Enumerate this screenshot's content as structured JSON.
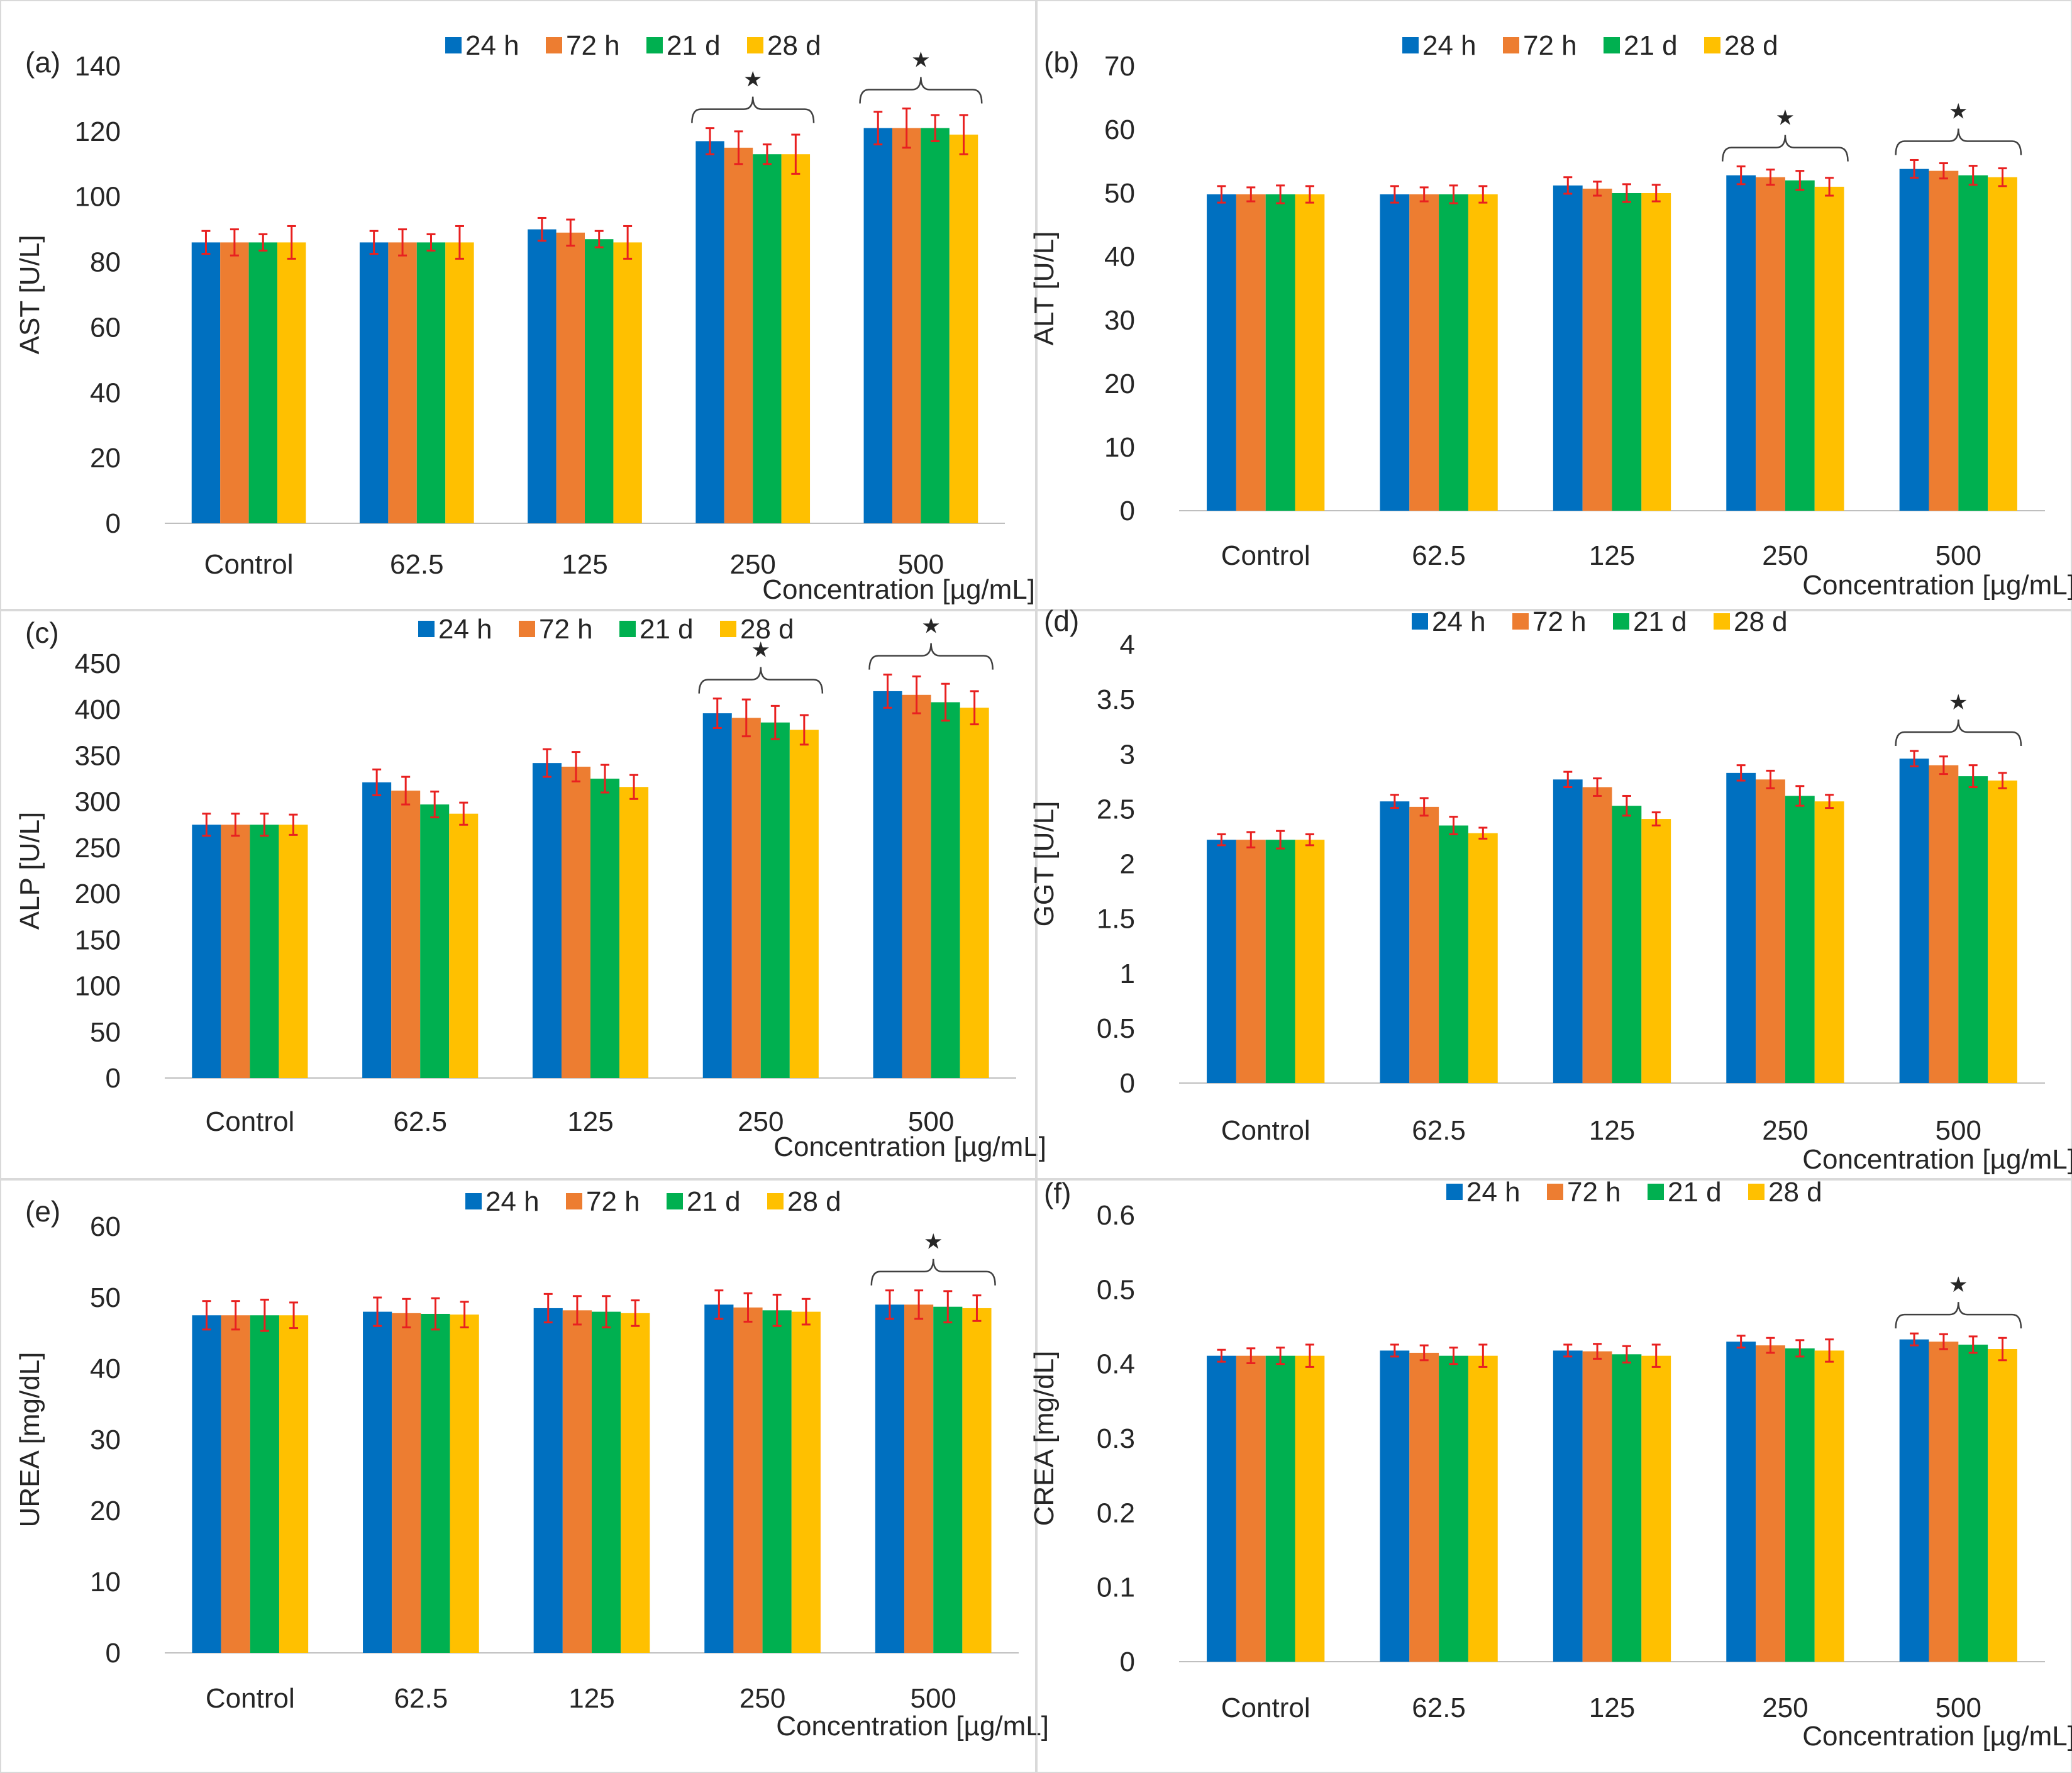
{
  "colors": {
    "series": [
      "#0070C0",
      "#ED7D31",
      "#00B050",
      "#FFC000"
    ],
    "error_bar": "#E82020",
    "axis": "#BFBFBF",
    "text": "#262626",
    "panel_border": "#D9D9D9"
  },
  "chart_data": [
    {
      "type": "bar",
      "panel": "(a)",
      "ylabel": "AST [U/L]",
      "xlabel": "Concentration [µg/mL]",
      "categories": [
        "Control",
        "62.5",
        "125",
        "250",
        "500"
      ],
      "ylim": [
        0,
        140
      ],
      "yticks": [
        "0",
        "20",
        "40",
        "60",
        "80",
        "100",
        "120",
        "140"
      ],
      "legend_position": "top",
      "series": [
        {
          "name": "24 h",
          "values": [
            86,
            86,
            90,
            117,
            121
          ],
          "errors": [
            3.5,
            3.5,
            3.5,
            4,
            5
          ]
        },
        {
          "name": "72 h",
          "values": [
            86,
            86,
            89,
            115,
            121
          ],
          "errors": [
            4,
            4,
            4,
            5,
            6
          ]
        },
        {
          "name": "21 d",
          "values": [
            86,
            86,
            87,
            113,
            121
          ],
          "errors": [
            2.5,
            2.5,
            2.5,
            3,
            4
          ]
        },
        {
          "name": "28 d",
          "values": [
            86,
            86,
            86,
            113,
            119
          ],
          "errors": [
            5,
            5,
            5,
            6,
            6
          ]
        }
      ],
      "significance": [
        {
          "group": 3,
          "mark": "★"
        },
        {
          "group": 4,
          "mark": "★"
        }
      ]
    },
    {
      "type": "bar",
      "panel": "(b)",
      "ylabel": "ALT [U/L]",
      "xlabel": "Concentration [µg/mL]",
      "categories": [
        "Control",
        "62.5",
        "125",
        "250",
        "500"
      ],
      "ylim": [
        0,
        70
      ],
      "yticks": [
        "0",
        "10",
        "20",
        "30",
        "40",
        "50",
        "60",
        "70"
      ],
      "legend_position": "top",
      "series": [
        {
          "name": "24 h",
          "values": [
            49.8,
            49.8,
            51.2,
            52.8,
            53.8
          ],
          "errors": [
            1.3,
            1.3,
            1.3,
            1.4,
            1.4
          ]
        },
        {
          "name": "72 h",
          "values": [
            49.8,
            49.8,
            50.7,
            52.5,
            53.5
          ],
          "errors": [
            1.1,
            1.1,
            1.1,
            1.2,
            1.2
          ]
        },
        {
          "name": "21 d",
          "values": [
            49.8,
            49.8,
            50.0,
            52.0,
            52.8
          ],
          "errors": [
            1.4,
            1.4,
            1.4,
            1.5,
            1.5
          ]
        },
        {
          "name": "28 d",
          "values": [
            49.8,
            49.8,
            50.0,
            51.0,
            52.5
          ],
          "errors": [
            1.3,
            1.3,
            1.3,
            1.4,
            1.4
          ]
        }
      ],
      "significance": [
        {
          "group": 3,
          "mark": "★"
        },
        {
          "group": 4,
          "mark": "★"
        }
      ]
    },
    {
      "type": "bar",
      "panel": "(c)",
      "ylabel": "ALP [U/L]",
      "xlabel": "Concentration [µg/mL]",
      "categories": [
        "Control",
        "62.5",
        "125",
        "250",
        "500"
      ],
      "ylim": [
        0,
        450
      ],
      "yticks": [
        "0",
        "50",
        "100",
        "150",
        "200",
        "250",
        "300",
        "350",
        "400",
        "450"
      ],
      "legend_position": "top",
      "series": [
        {
          "name": "24 h",
          "values": [
            275,
            321,
            342,
            396,
            420
          ],
          "errors": [
            12,
            14,
            15,
            16,
            18
          ]
        },
        {
          "name": "72 h",
          "values": [
            275,
            312,
            338,
            391,
            416
          ],
          "errors": [
            12,
            15,
            16,
            20,
            20
          ]
        },
        {
          "name": "21 d",
          "values": [
            275,
            297,
            325,
            386,
            408
          ],
          "errors": [
            12,
            14,
            15,
            18,
            20
          ]
        },
        {
          "name": "28 d",
          "values": [
            275,
            287,
            316,
            378,
            402
          ],
          "errors": [
            11,
            12,
            13,
            16,
            18
          ]
        }
      ],
      "significance": [
        {
          "group": 3,
          "mark": "★"
        },
        {
          "group": 4,
          "mark": "★"
        }
      ]
    },
    {
      "type": "bar",
      "panel": "(d)",
      "ylabel": "GGT [U/L]",
      "xlabel": "Concentration [µg/mL]",
      "categories": [
        "Control",
        "62.5",
        "125",
        "250",
        "500"
      ],
      "ylim": [
        0,
        4
      ],
      "yticks": [
        "0",
        "0.5",
        "1",
        "1.5",
        "2",
        "2.5",
        "3",
        "3.5",
        "4"
      ],
      "legend_position": "top",
      "series": [
        {
          "name": "24 h",
          "values": [
            2.22,
            2.57,
            2.77,
            2.83,
            2.96
          ],
          "errors": [
            0.05,
            0.06,
            0.07,
            0.07,
            0.07
          ]
        },
        {
          "name": "72 h",
          "values": [
            2.22,
            2.52,
            2.7,
            2.77,
            2.9
          ],
          "errors": [
            0.07,
            0.08,
            0.08,
            0.08,
            0.08
          ]
        },
        {
          "name": "21 d",
          "values": [
            2.22,
            2.35,
            2.53,
            2.62,
            2.8
          ],
          "errors": [
            0.08,
            0.08,
            0.09,
            0.09,
            0.1
          ]
        },
        {
          "name": "28 d",
          "values": [
            2.22,
            2.28,
            2.41,
            2.57,
            2.76
          ],
          "errors": [
            0.05,
            0.05,
            0.06,
            0.06,
            0.07
          ]
        }
      ],
      "significance": [
        {
          "group": 4,
          "mark": "★"
        }
      ]
    },
    {
      "type": "bar",
      "panel": "(e)",
      "ylabel": "UREA [mg/dL]",
      "xlabel": "Concentration [µg/mL]",
      "categories": [
        "Control",
        "62.5",
        "125",
        "250",
        "500"
      ],
      "ylim": [
        0,
        60
      ],
      "yticks": [
        "0",
        "10",
        "20",
        "30",
        "40",
        "50",
        "60"
      ],
      "legend_position": "top",
      "series": [
        {
          "name": "24 h",
          "values": [
            47.5,
            48.0,
            48.5,
            49.0,
            49.0
          ],
          "errors": [
            2.0,
            2.0,
            2.0,
            2.0,
            2.0
          ]
        },
        {
          "name": "72 h",
          "values": [
            47.5,
            47.8,
            48.2,
            48.6,
            49.0
          ],
          "errors": [
            2.0,
            2.0,
            2.0,
            2.0,
            2.0
          ]
        },
        {
          "name": "21 d",
          "values": [
            47.5,
            47.7,
            48.0,
            48.2,
            48.7
          ],
          "errors": [
            2.2,
            2.2,
            2.2,
            2.2,
            2.2
          ]
        },
        {
          "name": "28 d",
          "values": [
            47.5,
            47.6,
            47.8,
            48.0,
            48.5
          ],
          "errors": [
            1.8,
            1.8,
            1.8,
            1.8,
            1.8
          ]
        }
      ],
      "significance": [
        {
          "group": 4,
          "mark": "★"
        }
      ]
    },
    {
      "type": "bar",
      "panel": "(f)",
      "ylabel": "CREA [mg/dL]",
      "xlabel": "Concentration [µg/mL]",
      "categories": [
        "Control",
        "62.5",
        "125",
        "250",
        "500"
      ],
      "ylim": [
        0,
        0.6
      ],
      "yticks": [
        "0",
        "0.1",
        "0.2",
        "0.3",
        "0.4",
        "0.5",
        "0.6"
      ],
      "legend_position": "top",
      "series": [
        {
          "name": "24 h",
          "values": [
            0.411,
            0.418,
            0.418,
            0.43,
            0.433
          ],
          "errors": [
            0.008,
            0.008,
            0.008,
            0.008,
            0.008
          ]
        },
        {
          "name": "72 h",
          "values": [
            0.411,
            0.415,
            0.417,
            0.425,
            0.43
          ],
          "errors": [
            0.01,
            0.01,
            0.01,
            0.01,
            0.01
          ]
        },
        {
          "name": "21 d",
          "values": [
            0.411,
            0.411,
            0.413,
            0.421,
            0.426
          ],
          "errors": [
            0.011,
            0.011,
            0.011,
            0.011,
            0.011
          ]
        },
        {
          "name": "28 d",
          "values": [
            0.411,
            0.411,
            0.411,
            0.418,
            0.42
          ],
          "errors": [
            0.015,
            0.015,
            0.015,
            0.015,
            0.015
          ]
        }
      ],
      "significance": [
        {
          "group": 4,
          "mark": "★"
        }
      ]
    }
  ]
}
